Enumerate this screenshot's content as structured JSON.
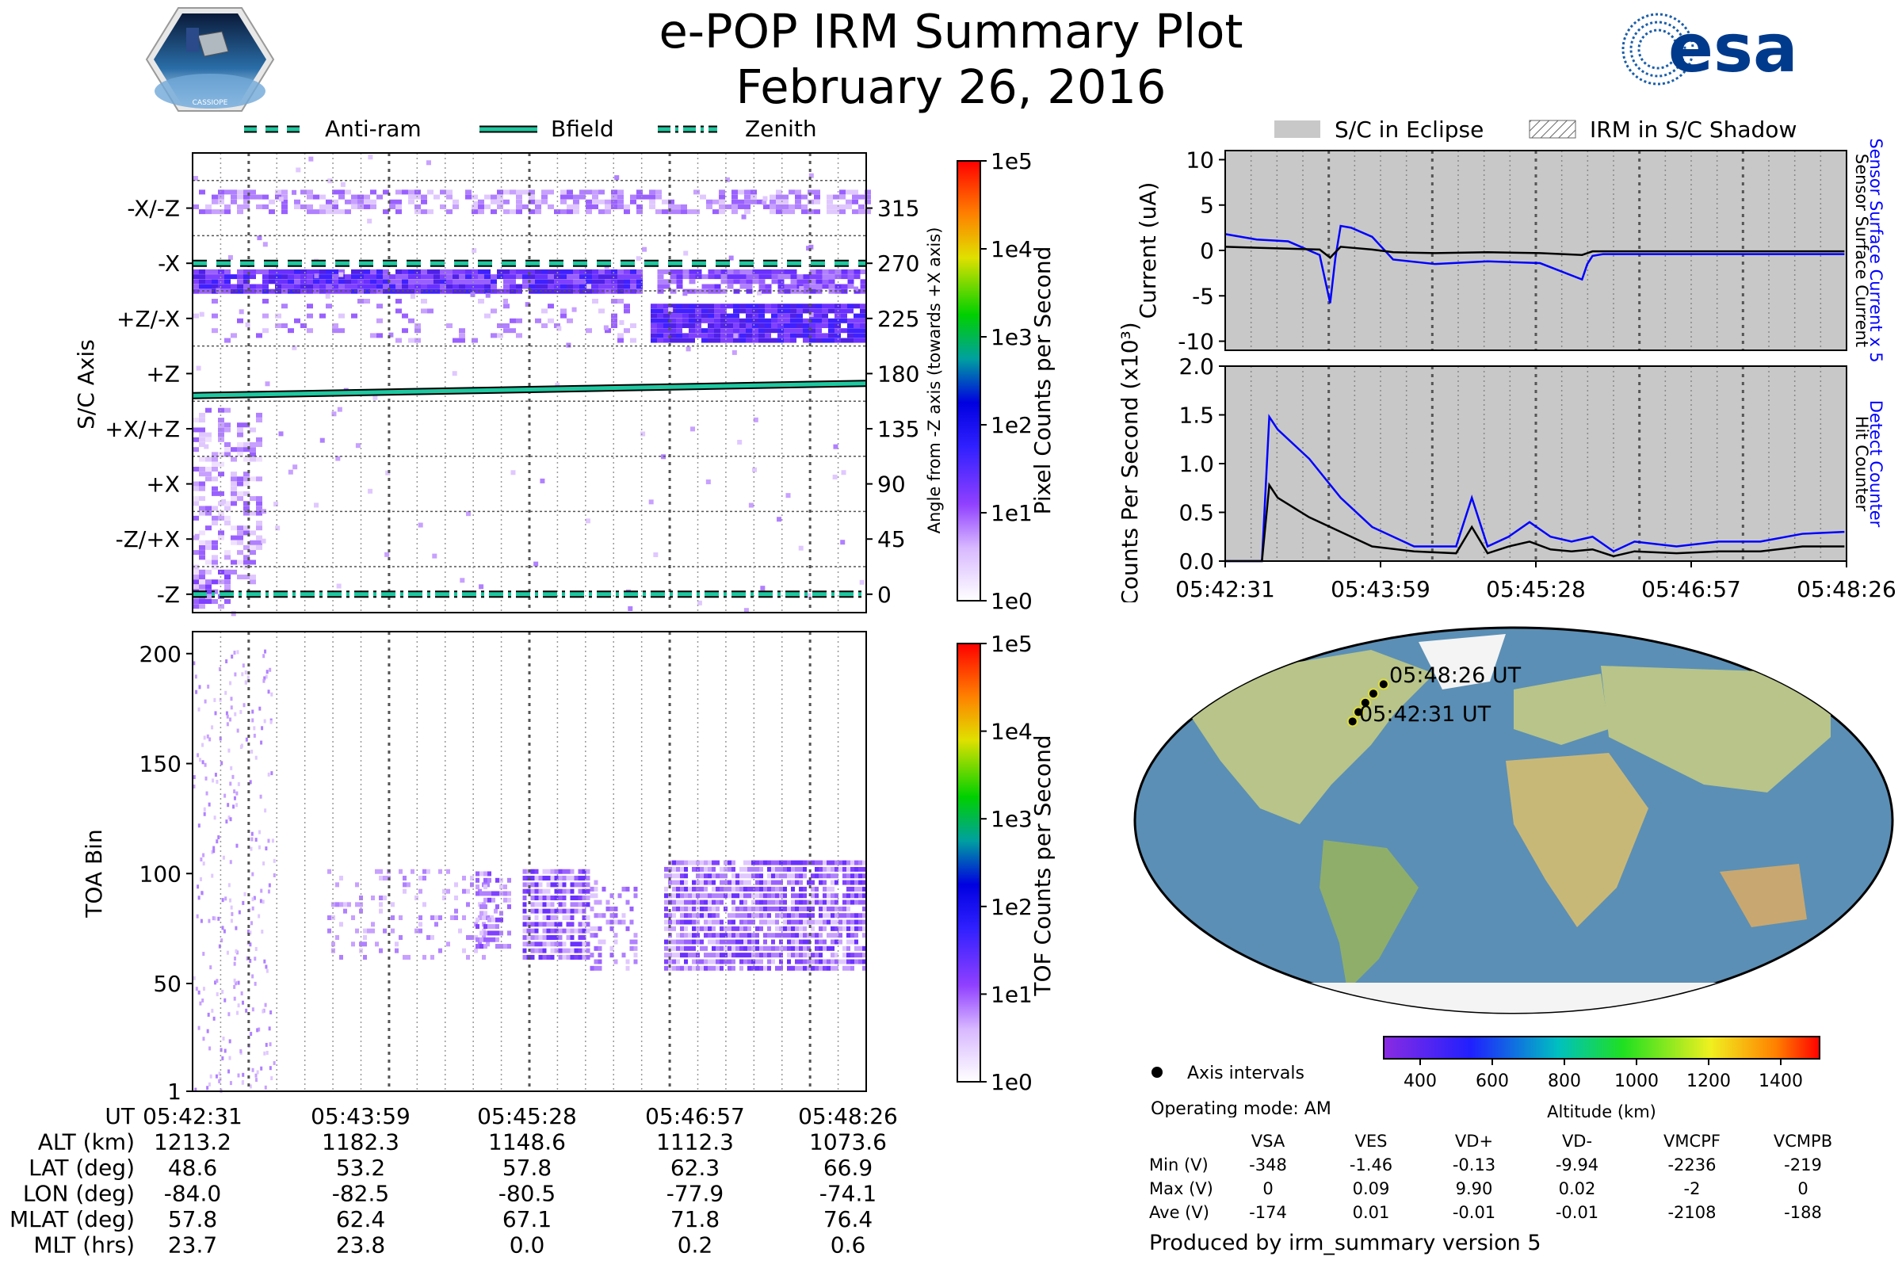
{
  "header": {
    "title": "e-POP IRM Summary Plot",
    "date": "February 26, 2016",
    "logo_left_text": "CASSIOPE",
    "logo_right_text": "esa"
  },
  "colors": {
    "anti_ram": "#1ec8a0",
    "bfield": "#1ec8a0",
    "zenith": "#1ec8a0",
    "current_blue": "#0000ff",
    "eclipse_gray": "#c8c8c8",
    "map_ocean": "#5b8fb5"
  },
  "legend_top_left": [
    {
      "label": "Anti-ram",
      "style": "dashed"
    },
    {
      "label": "Bfield",
      "style": "solid"
    },
    {
      "label": "Zenith",
      "style": "dashdot"
    }
  ],
  "legend_top_right": [
    {
      "label": "S/C in Eclipse"
    },
    {
      "label": "IRM in S/C Shadow"
    }
  ],
  "chart_data": [
    {
      "type": "heatmap",
      "name": "sc-axis-panel",
      "ylabel": "S/C Axis",
      "ylabel_right": "Angle from -Z axis (towards +X axis)",
      "left_ticks": [
        "-X/-Z",
        "-X",
        "+Z/-X",
        "+Z",
        "+X/+Z",
        "+X",
        "-Z/+X",
        "-Z"
      ],
      "right_ticks": [
        "315",
        "270",
        "225",
        "180",
        "135",
        "90",
        "45",
        "0"
      ],
      "colorbar_label": "Pixel Counts per Second",
      "colorbar_ticks": [
        "1e5",
        "1e4",
        "1e3",
        "1e2",
        "1e1",
        "1e0"
      ],
      "ylim": [
        -15,
        360
      ],
      "anti_ram_angle": 270,
      "zenith_angle": 0,
      "bfield_angle": [
        162,
        172
      ]
    },
    {
      "type": "heatmap",
      "name": "toa-panel",
      "ylabel": "TOA Bin",
      "yticks": [
        "200",
        "150",
        "100",
        "50",
        "1"
      ],
      "ylim": [
        1,
        210
      ],
      "colorbar_label": "TOF Counts per Second",
      "colorbar_ticks": [
        "1e5",
        "1e4",
        "1e3",
        "1e2",
        "1e1",
        "1e0"
      ]
    },
    {
      "type": "line",
      "name": "current-panel",
      "ylabel": "Current (uA)",
      "ylim": [
        -11,
        11
      ],
      "yticks": [
        "10",
        "5",
        "0",
        "-5",
        "-10"
      ],
      "right_labels": [
        {
          "text": "Sensor Surface Current x 5",
          "color": "#0000ff"
        },
        {
          "text": "Sensor Surface Current",
          "color": "#000000"
        }
      ],
      "x_minutes": [
        0,
        0.3,
        0.6,
        0.9,
        1.0,
        1.05,
        1.1,
        1.2,
        1.4,
        1.6,
        2.0,
        2.5,
        3.0,
        3.4,
        3.45,
        3.5,
        3.6,
        4.0,
        4.5,
        5.0,
        5.5,
        5.9
      ],
      "series": [
        {
          "name": "Sensor Surface Current x 5",
          "color": "#0000ff",
          "values": [
            1.8,
            1.2,
            1.0,
            -0.5,
            -5.8,
            -0.8,
            2.7,
            2.5,
            1.5,
            -1.0,
            -1.5,
            -1.2,
            -1.4,
            -3.2,
            -1.5,
            -0.6,
            -0.4,
            -0.4,
            -0.4,
            -0.4,
            -0.4,
            -0.4
          ]
        },
        {
          "name": "Sensor Surface Current",
          "color": "#000000",
          "values": [
            0.4,
            0.3,
            0.2,
            0.1,
            -0.8,
            -0.2,
            0.4,
            0.3,
            0.1,
            -0.2,
            -0.3,
            -0.2,
            -0.3,
            -0.5,
            -0.3,
            -0.1,
            -0.1,
            -0.1,
            -0.1,
            -0.1,
            -0.1,
            -0.1
          ]
        }
      ]
    },
    {
      "type": "line",
      "name": "counts-panel",
      "ylabel": "Counts Per Second (x10³)",
      "ylim": [
        0,
        2.0
      ],
      "yticks": [
        "2.0",
        "1.5",
        "1.0",
        "0.5",
        "0.0"
      ],
      "right_labels": [
        {
          "text": "Detect Counter",
          "color": "#0000ff"
        },
        {
          "text": "Hit Counter",
          "color": "#000000"
        }
      ],
      "xtick_labels": [
        "05:42:31",
        "05:43:59",
        "05:45:28",
        "05:46:57",
        "05:48:26"
      ],
      "x_minutes": [
        0,
        0.35,
        0.42,
        0.5,
        0.8,
        1.1,
        1.4,
        1.8,
        2.2,
        2.35,
        2.5,
        2.7,
        2.9,
        3.1,
        3.3,
        3.5,
        3.7,
        3.9,
        4.3,
        4.7,
        5.1,
        5.5,
        5.9
      ],
      "series": [
        {
          "name": "Detect Counter",
          "color": "#0000ff",
          "values": [
            0.0,
            0.0,
            1.48,
            1.35,
            1.05,
            0.65,
            0.35,
            0.15,
            0.15,
            0.65,
            0.15,
            0.25,
            0.4,
            0.25,
            0.2,
            0.25,
            0.1,
            0.2,
            0.15,
            0.2,
            0.2,
            0.28,
            0.3
          ]
        },
        {
          "name": "Hit Counter",
          "color": "#000000",
          "values": [
            0.0,
            0.0,
            0.78,
            0.65,
            0.45,
            0.3,
            0.15,
            0.1,
            0.08,
            0.35,
            0.08,
            0.15,
            0.2,
            0.12,
            0.1,
            0.12,
            0.05,
            0.1,
            0.08,
            0.1,
            0.1,
            0.15,
            0.15
          ]
        }
      ]
    }
  ],
  "map": {
    "start_label": "05:42:31 UT",
    "end_label": "05:48:26 UT",
    "track": [
      [
        -84.0,
        48.6
      ],
      [
        -82.5,
        53.2
      ],
      [
        -80.5,
        57.8
      ],
      [
        -77.9,
        62.3
      ],
      [
        -74.1,
        66.9
      ]
    ],
    "altitude_colorbar": {
      "label": "Altitude (km)",
      "ticks": [
        "400",
        "600",
        "800",
        "1000",
        "1200",
        "1400"
      ]
    },
    "axis_intervals_label": "Axis intervals",
    "operating_mode": "Operating mode: AM"
  },
  "info_table": {
    "headers": [
      "VSA",
      "VES",
      "VD+",
      "VD-",
      "VMCPF",
      "VCMPB"
    ],
    "rows": [
      {
        "label": "Min (V)",
        "values": [
          "-348",
          "-1.46",
          "-0.13",
          "-9.94",
          "-2236",
          "-219"
        ]
      },
      {
        "label": "Max (V)",
        "values": [
          "0",
          "0.09",
          "9.90",
          "0.02",
          "-2",
          "0"
        ]
      },
      {
        "label": "Ave (V)",
        "values": [
          "-174",
          "0.01",
          "-0.01",
          "-0.01",
          "-2108",
          "-188"
        ]
      }
    ]
  },
  "footer_left": {
    "row_labels": [
      "UT",
      "ALT (km)",
      "LAT (deg)",
      "LON (deg)",
      "MLAT (deg)",
      "MLT (hrs)"
    ],
    "columns": [
      [
        "05:42:31",
        "1213.2",
        "48.6",
        "-84.0",
        "57.8",
        "23.7"
      ],
      [
        "05:43:59",
        "1182.3",
        "53.2",
        "-82.5",
        "62.4",
        "23.8"
      ],
      [
        "05:45:28",
        "1148.6",
        "57.8",
        "-80.5",
        "67.1",
        "0.0"
      ],
      [
        "05:46:57",
        "1112.3",
        "62.3",
        "-77.9",
        "71.8",
        "0.2"
      ],
      [
        "05:48:26",
        "1073.6",
        "66.9",
        "-74.1",
        "76.4",
        "0.6"
      ]
    ]
  },
  "produced_by": "Produced by irm_summary version 5"
}
